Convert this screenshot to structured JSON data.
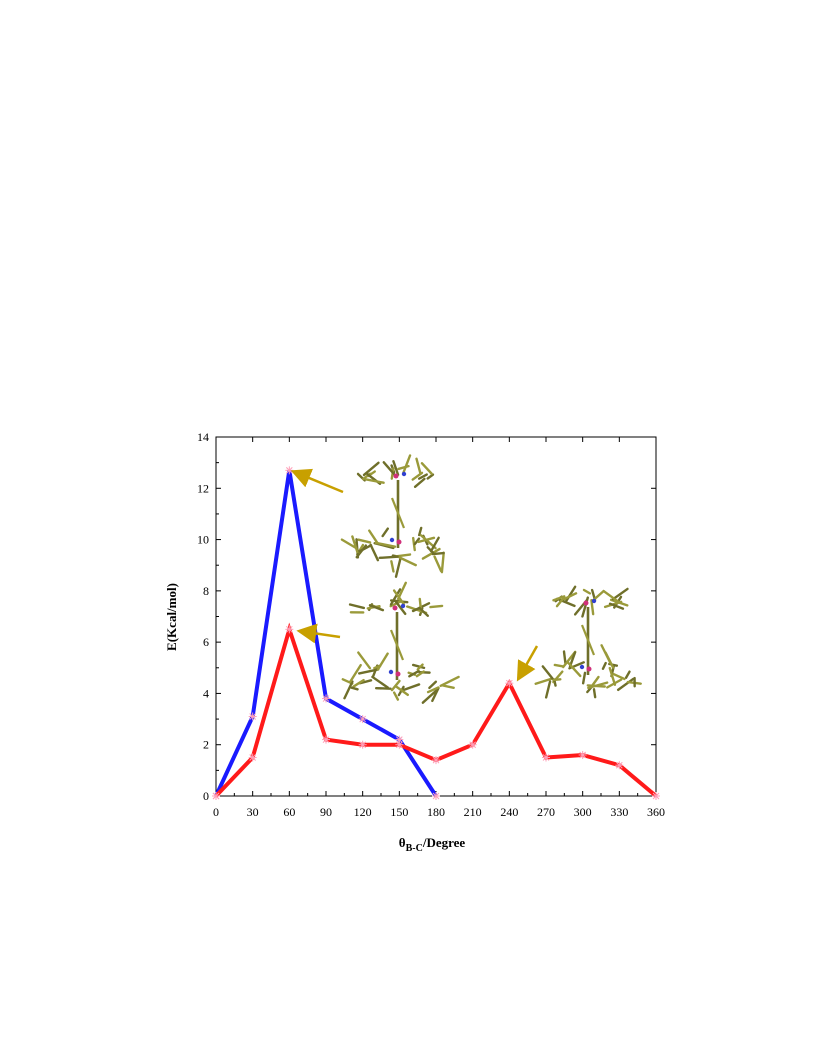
{
  "chart_data": {
    "type": "line",
    "xlabel": {
      "prefix": "θ",
      "subscript": "B-C",
      "suffix": "/Degree"
    },
    "ylabel": "E(Kcal/mol)",
    "xlim": [
      0,
      360
    ],
    "ylim": [
      0,
      14
    ],
    "xticks": [
      "0",
      "30",
      "60",
      "90",
      "120",
      "150",
      "180",
      "210",
      "240",
      "270",
      "300",
      "330",
      "360"
    ],
    "yticks": [
      "0",
      "2",
      "4",
      "6",
      "8",
      "10",
      "12",
      "14"
    ],
    "grid": false,
    "series": [
      {
        "color": "#1a1aff",
        "x": [
          0,
          30,
          60,
          90,
          120,
          150,
          180
        ],
        "y": [
          0,
          3.1,
          12.7,
          3.8,
          3.0,
          2.2,
          0
        ]
      },
      {
        "color": "#ff1a1a",
        "x": [
          0,
          30,
          60,
          90,
          120,
          150,
          180,
          210,
          240,
          270,
          300,
          330,
          360
        ],
        "y": [
          0,
          1.5,
          6.5,
          2.2,
          2.0,
          2.0,
          1.4,
          2.0,
          4.4,
          1.5,
          1.6,
          1.2,
          0
        ]
      }
    ],
    "annotations": [
      {
        "type": "arrow",
        "target_series": 0,
        "target_x": 60,
        "note_icon": "molecule-structure-icon"
      },
      {
        "type": "arrow",
        "target_series": 1,
        "target_x": 60,
        "note_icon": "molecule-structure-icon"
      },
      {
        "type": "arrow",
        "target_series": 1,
        "target_x": 240,
        "note_icon": "molecule-structure-icon"
      }
    ],
    "arrow_color": "#c8a000"
  }
}
